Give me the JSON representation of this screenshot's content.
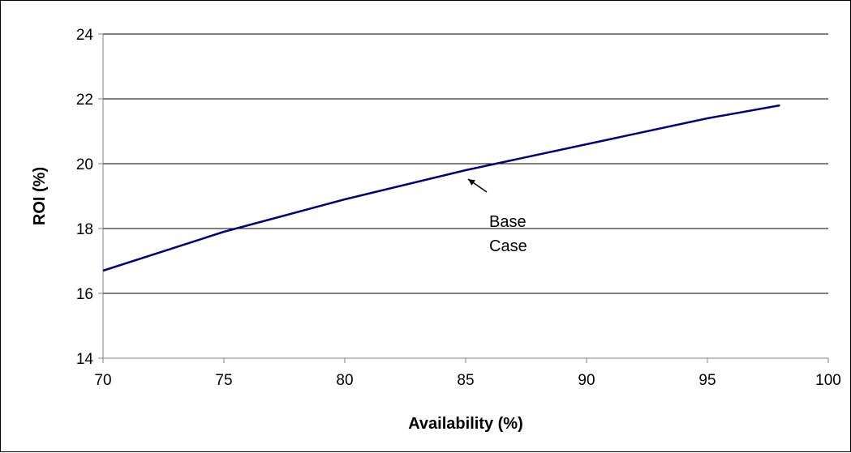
{
  "chart_data": {
    "type": "line",
    "title": "",
    "xlabel": "Availability (%)",
    "ylabel": "ROI (%)",
    "xlim": [
      70,
      100
    ],
    "ylim": [
      14,
      24
    ],
    "x_ticks": [
      70,
      75,
      80,
      85,
      90,
      95,
      100
    ],
    "y_ticks": [
      14,
      16,
      18,
      20,
      22,
      24
    ],
    "grid": "horizontal",
    "legend": "none",
    "series": [
      {
        "color": "#000080",
        "x": [
          70,
          75,
          80,
          85,
          90,
          95,
          98
        ],
        "y": [
          16.7,
          17.9,
          18.9,
          19.8,
          20.6,
          21.4,
          21.8
        ]
      }
    ],
    "annotations": [
      {
        "text_lines": [
          "Base",
          "Case"
        ],
        "x": 85,
        "y": 19.8
      }
    ]
  }
}
